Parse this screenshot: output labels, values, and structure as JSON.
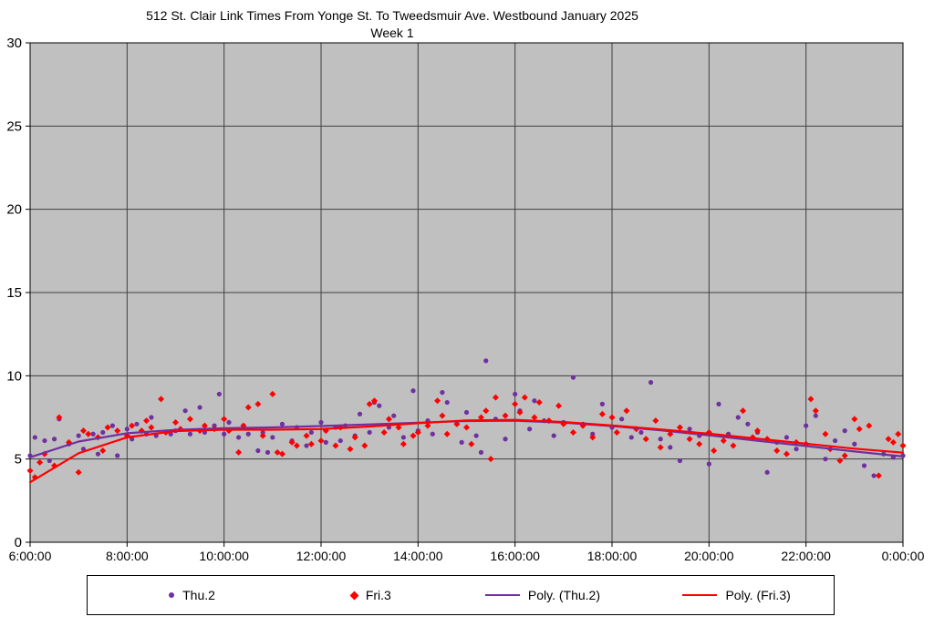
{
  "chart_data": {
    "type": "scatter",
    "title": "512 St. Clair Link Times From Yonge St. To Tweedsmuir Ave. Westbound January 2025",
    "subtitle": "Week 1",
    "grid": true,
    "plot_bg": "#c0c0c0",
    "grid_color": "#3f3f3f",
    "x_axis": {
      "min": 6,
      "max": 24,
      "tick_interval_hours": 2,
      "tick_labels": [
        "6:00:00",
        "8:00:00",
        "10:00:00",
        "12:00:00",
        "14:00:00",
        "16:00:00",
        "18:00:00",
        "20:00:00",
        "22:00:00",
        "0:00:00"
      ]
    },
    "y_axis": {
      "min": 0,
      "max": 30,
      "tick_interval": 5,
      "tick_labels": [
        "0",
        "5",
        "10",
        "15",
        "20",
        "25",
        "30"
      ]
    },
    "legend_position": "bottom",
    "series": [
      {
        "name": "Thu.2",
        "type": "scatter",
        "marker": "circle",
        "color": "#7030A0",
        "points": [
          [
            6.0,
            5.2
          ],
          [
            6.1,
            6.3
          ],
          [
            6.3,
            6.1
          ],
          [
            6.4,
            4.9
          ],
          [
            6.5,
            6.2
          ],
          [
            6.6,
            7.4
          ],
          [
            6.8,
            5.9
          ],
          [
            7.0,
            6.4
          ],
          [
            7.1,
            5.6
          ],
          [
            7.3,
            6.5
          ],
          [
            7.4,
            5.3
          ],
          [
            7.5,
            6.6
          ],
          [
            7.7,
            7.0
          ],
          [
            7.8,
            5.2
          ],
          [
            8.0,
            6.8
          ],
          [
            8.1,
            6.2
          ],
          [
            8.2,
            7.1
          ],
          [
            8.4,
            6.5
          ],
          [
            8.5,
            7.5
          ],
          [
            8.6,
            6.4
          ],
          [
            8.8,
            6.6
          ],
          [
            8.9,
            6.5
          ],
          [
            9.0,
            6.7
          ],
          [
            9.2,
            7.9
          ],
          [
            9.3,
            6.5
          ],
          [
            9.5,
            8.1
          ],
          [
            9.6,
            6.6
          ],
          [
            9.8,
            7.0
          ],
          [
            9.9,
            8.9
          ],
          [
            10.0,
            6.5
          ],
          [
            10.1,
            7.2
          ],
          [
            10.3,
            6.3
          ],
          [
            10.4,
            7.0
          ],
          [
            10.5,
            6.5
          ],
          [
            10.7,
            5.5
          ],
          [
            10.8,
            6.6
          ],
          [
            10.9,
            5.4
          ],
          [
            11.0,
            6.3
          ],
          [
            11.2,
            7.1
          ],
          [
            11.4,
            6.1
          ],
          [
            11.5,
            6.9
          ],
          [
            11.7,
            5.8
          ],
          [
            11.8,
            6.6
          ],
          [
            12.0,
            7.2
          ],
          [
            12.1,
            6.0
          ],
          [
            12.3,
            6.9
          ],
          [
            12.4,
            6.1
          ],
          [
            12.5,
            7.0
          ],
          [
            12.7,
            6.4
          ],
          [
            12.8,
            7.7
          ],
          [
            13.0,
            6.6
          ],
          [
            13.1,
            8.4
          ],
          [
            13.2,
            8.2
          ],
          [
            13.4,
            6.9
          ],
          [
            13.5,
            7.6
          ],
          [
            13.7,
            6.3
          ],
          [
            13.9,
            9.1
          ],
          [
            14.0,
            6.7
          ],
          [
            14.2,
            7.3
          ],
          [
            14.3,
            6.5
          ],
          [
            14.5,
            9.0
          ],
          [
            14.6,
            8.4
          ],
          [
            14.8,
            7.1
          ],
          [
            14.9,
            6.0
          ],
          [
            15.0,
            7.8
          ],
          [
            15.2,
            6.4
          ],
          [
            15.3,
            5.4
          ],
          [
            15.4,
            10.9
          ],
          [
            15.6,
            7.4
          ],
          [
            15.8,
            6.2
          ],
          [
            16.0,
            8.9
          ],
          [
            16.1,
            7.9
          ],
          [
            16.3,
            6.8
          ],
          [
            16.4,
            8.5
          ],
          [
            16.6,
            7.3
          ],
          [
            16.8,
            6.4
          ],
          [
            17.0,
            7.2
          ],
          [
            17.2,
            9.9
          ],
          [
            17.4,
            7.1
          ],
          [
            17.6,
            6.5
          ],
          [
            17.8,
            8.3
          ],
          [
            18.0,
            6.9
          ],
          [
            18.2,
            7.4
          ],
          [
            18.4,
            6.3
          ],
          [
            18.6,
            6.6
          ],
          [
            18.8,
            9.6
          ],
          [
            19.0,
            6.2
          ],
          [
            19.2,
            5.7
          ],
          [
            19.4,
            4.9
          ],
          [
            19.6,
            6.8
          ],
          [
            19.8,
            6.4
          ],
          [
            20.0,
            4.7
          ],
          [
            20.2,
            8.3
          ],
          [
            20.4,
            6.5
          ],
          [
            20.6,
            7.5
          ],
          [
            20.8,
            7.1
          ],
          [
            21.0,
            6.6
          ],
          [
            21.2,
            4.2
          ],
          [
            21.4,
            6.0
          ],
          [
            21.6,
            6.3
          ],
          [
            21.8,
            5.6
          ],
          [
            22.0,
            7.0
          ],
          [
            22.2,
            7.6
          ],
          [
            22.4,
            5.0
          ],
          [
            22.6,
            6.1
          ],
          [
            22.8,
            6.7
          ],
          [
            23.0,
            5.9
          ],
          [
            23.2,
            4.6
          ],
          [
            23.4,
            4.0
          ],
          [
            23.6,
            5.3
          ],
          [
            23.8,
            5.1
          ],
          [
            24.0,
            5.2
          ]
        ]
      },
      {
        "name": "Fri.3",
        "type": "scatter",
        "marker": "diamond",
        "color": "#FF0000",
        "points": [
          [
            6.0,
            4.3
          ],
          [
            6.1,
            3.9
          ],
          [
            6.2,
            4.8
          ],
          [
            6.3,
            5.3
          ],
          [
            6.5,
            4.6
          ],
          [
            6.6,
            7.5
          ],
          [
            6.8,
            6.0
          ],
          [
            7.0,
            4.2
          ],
          [
            7.1,
            6.7
          ],
          [
            7.2,
            6.5
          ],
          [
            7.4,
            6.3
          ],
          [
            7.5,
            5.5
          ],
          [
            7.6,
            6.9
          ],
          [
            7.8,
            6.7
          ],
          [
            8.0,
            6.4
          ],
          [
            8.1,
            7.0
          ],
          [
            8.3,
            6.7
          ],
          [
            8.4,
            7.3
          ],
          [
            8.5,
            6.9
          ],
          [
            8.7,
            8.6
          ],
          [
            8.8,
            6.6
          ],
          [
            9.0,
            7.2
          ],
          [
            9.1,
            6.8
          ],
          [
            9.3,
            7.4
          ],
          [
            9.5,
            6.7
          ],
          [
            9.6,
            7.0
          ],
          [
            9.8,
            6.8
          ],
          [
            10.0,
            7.4
          ],
          [
            10.1,
            6.7
          ],
          [
            10.3,
            5.4
          ],
          [
            10.4,
            7.0
          ],
          [
            10.5,
            8.1
          ],
          [
            10.7,
            8.3
          ],
          [
            10.8,
            6.4
          ],
          [
            11.0,
            8.9
          ],
          [
            11.1,
            5.4
          ],
          [
            11.2,
            5.3
          ],
          [
            11.4,
            6.0
          ],
          [
            11.5,
            5.8
          ],
          [
            11.7,
            6.4
          ],
          [
            11.8,
            5.9
          ],
          [
            12.0,
            6.1
          ],
          [
            12.1,
            6.7
          ],
          [
            12.3,
            5.8
          ],
          [
            12.4,
            6.9
          ],
          [
            12.6,
            5.6
          ],
          [
            12.7,
            6.3
          ],
          [
            12.9,
            5.8
          ],
          [
            13.0,
            8.3
          ],
          [
            13.1,
            8.5
          ],
          [
            13.3,
            6.6
          ],
          [
            13.4,
            7.4
          ],
          [
            13.6,
            6.9
          ],
          [
            13.7,
            5.9
          ],
          [
            13.9,
            6.4
          ],
          [
            14.0,
            6.6
          ],
          [
            14.2,
            7.0
          ],
          [
            14.4,
            8.5
          ],
          [
            14.5,
            7.6
          ],
          [
            14.6,
            6.5
          ],
          [
            14.8,
            7.1
          ],
          [
            15.0,
            6.9
          ],
          [
            15.1,
            5.9
          ],
          [
            15.3,
            7.5
          ],
          [
            15.4,
            7.9
          ],
          [
            15.5,
            5.0
          ],
          [
            15.6,
            8.7
          ],
          [
            15.8,
            7.6
          ],
          [
            16.0,
            8.3
          ],
          [
            16.1,
            7.8
          ],
          [
            16.2,
            8.7
          ],
          [
            16.4,
            7.5
          ],
          [
            16.5,
            8.4
          ],
          [
            16.7,
            7.3
          ],
          [
            16.9,
            8.2
          ],
          [
            17.0,
            7.1
          ],
          [
            17.2,
            6.6
          ],
          [
            17.4,
            7.0
          ],
          [
            17.6,
            6.3
          ],
          [
            17.8,
            7.7
          ],
          [
            18.0,
            7.5
          ],
          [
            18.1,
            6.6
          ],
          [
            18.3,
            7.9
          ],
          [
            18.5,
            6.8
          ],
          [
            18.7,
            6.2
          ],
          [
            18.9,
            7.3
          ],
          [
            19.0,
            5.7
          ],
          [
            19.2,
            6.5
          ],
          [
            19.4,
            6.9
          ],
          [
            19.6,
            6.2
          ],
          [
            19.8,
            5.9
          ],
          [
            20.0,
            6.6
          ],
          [
            20.1,
            5.5
          ],
          [
            20.3,
            6.1
          ],
          [
            20.5,
            5.8
          ],
          [
            20.7,
            7.9
          ],
          [
            20.9,
            6.3
          ],
          [
            21.0,
            6.7
          ],
          [
            21.2,
            6.2
          ],
          [
            21.4,
            5.5
          ],
          [
            21.6,
            5.3
          ],
          [
            21.8,
            6.0
          ],
          [
            22.0,
            5.9
          ],
          [
            22.1,
            8.6
          ],
          [
            22.2,
            7.9
          ],
          [
            22.4,
            6.5
          ],
          [
            22.5,
            5.6
          ],
          [
            22.7,
            4.9
          ],
          [
            22.8,
            5.2
          ],
          [
            23.0,
            7.4
          ],
          [
            23.1,
            6.8
          ],
          [
            23.3,
            7.0
          ],
          [
            23.5,
            4.0
          ],
          [
            23.7,
            6.2
          ],
          [
            23.8,
            6.0
          ],
          [
            23.9,
            6.5
          ],
          [
            24.0,
            5.8
          ]
        ]
      },
      {
        "name": "Poly. (Thu.2)",
        "type": "line",
        "color": "#7030A0",
        "points": [
          [
            6,
            5.1
          ],
          [
            7,
            6.05
          ],
          [
            8,
            6.55
          ],
          [
            9,
            6.75
          ],
          [
            10,
            6.85
          ],
          [
            11,
            6.9
          ],
          [
            12,
            6.98
          ],
          [
            13,
            7.08
          ],
          [
            14,
            7.18
          ],
          [
            15,
            7.28
          ],
          [
            16,
            7.3
          ],
          [
            17,
            7.18
          ],
          [
            18,
            6.98
          ],
          [
            19,
            6.72
          ],
          [
            20,
            6.42
          ],
          [
            21,
            6.1
          ],
          [
            22,
            5.78
          ],
          [
            23,
            5.45
          ],
          [
            24,
            5.15
          ]
        ]
      },
      {
        "name": "Poly. (Fri.3)",
        "type": "line",
        "color": "#FF0000",
        "points": [
          [
            6,
            3.6
          ],
          [
            7,
            5.35
          ],
          [
            8,
            6.3
          ],
          [
            9,
            6.68
          ],
          [
            10,
            6.76
          ],
          [
            11,
            6.76
          ],
          [
            12,
            6.8
          ],
          [
            13,
            6.95
          ],
          [
            14,
            7.15
          ],
          [
            15,
            7.32
          ],
          [
            16,
            7.35
          ],
          [
            17,
            7.22
          ],
          [
            18,
            7.02
          ],
          [
            19,
            6.78
          ],
          [
            20,
            6.52
          ],
          [
            21,
            6.22
          ],
          [
            22,
            5.92
          ],
          [
            23,
            5.62
          ],
          [
            24,
            5.38
          ]
        ]
      }
    ]
  }
}
